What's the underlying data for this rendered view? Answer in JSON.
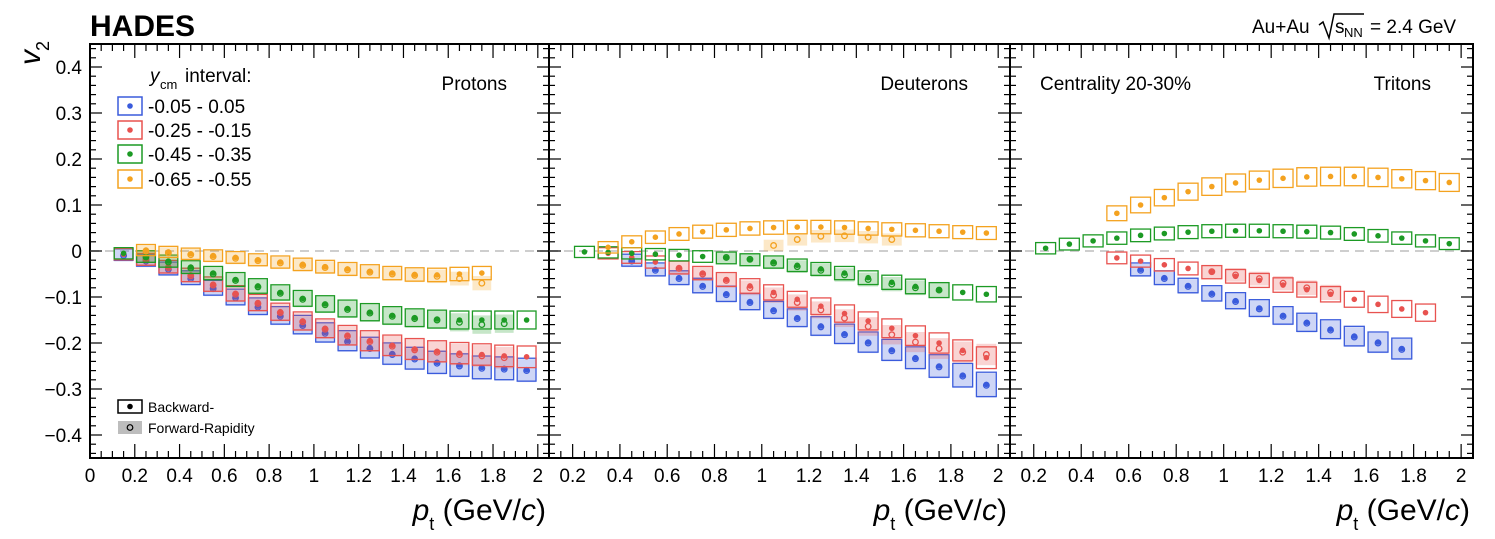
{
  "experiment": "HADES",
  "system": {
    "prefix": "Au+Au",
    "sqrt": "s",
    "sub": "NN",
    "suffix": "= 2.4 GeV"
  },
  "centrality": "Centrality 20-30%",
  "legend": {
    "title_y": "y",
    "title_sub": "cm",
    "title_rest": "interval:",
    "marker_backward": "Backward-",
    "marker_forward": "Forward-Rapidity"
  },
  "colors": {
    "c005": "#3a5bdc",
    "c025": "#e8524f",
    "c045": "#1c9a24",
    "c065": "#f4a21f",
    "dashed": "#bdbdbd"
  },
  "chart_data": [
    {
      "type": "scatter",
      "title": "Protons",
      "xlabel_main": "p",
      "xlabel_sub": "t",
      "xlabel_unit": "(GeV/c)",
      "ylabel_main": "v",
      "ylabel_sub": "2",
      "xlim": [
        0,
        2.05
      ],
      "ylim": [
        -0.45,
        0.45
      ],
      "x_ticks": [
        "0",
        "0.2",
        "0.4",
        "0.6",
        "0.8",
        "1",
        "1.2",
        "1.4",
        "1.6",
        "1.8",
        "2"
      ],
      "y_ticks": [
        "0.4",
        "0.3",
        "0.2",
        "0.1",
        "0",
        "-0.1",
        "-0.2",
        "-0.3",
        "-0.4"
      ],
      "series": [
        {
          "name": "-0.05 - 0.05",
          "color_key": "c005",
          "backward": {
            "x": [
              0.15,
              0.25,
              0.35,
              0.45,
              0.55,
              0.65,
              0.75,
              0.85,
              0.95,
              1.05,
              1.15,
              1.25,
              1.35,
              1.45,
              1.55,
              1.65,
              1.75,
              1.85,
              1.95
            ],
            "y": [
              -0.008,
              -0.02,
              -0.038,
              -0.058,
              -0.08,
              -0.1,
              -0.12,
              -0.14,
              -0.16,
              -0.177,
              -0.195,
              -0.21,
              -0.223,
              -0.233,
              -0.242,
              -0.248,
              -0.253,
              -0.255,
              -0.258
            ]
          },
          "forward": {
            "x": [
              0.15,
              0.25,
              0.35,
              0.45,
              0.55,
              0.65,
              0.75,
              0.85,
              0.95,
              1.05,
              1.15,
              1.25,
              1.35,
              1.45,
              1.55,
              1.65,
              1.75,
              1.85,
              1.95
            ],
            "y": [
              -0.01,
              -0.022,
              -0.04,
              -0.06,
              -0.082,
              -0.102,
              -0.122,
              -0.142,
              -0.162,
              -0.179,
              -0.197,
              -0.212,
              -0.225,
              -0.235,
              -0.244,
              -0.25,
              -0.255,
              -0.257,
              -0.26
            ]
          }
        },
        {
          "name": "-0.25 - -0.15",
          "color_key": "c025",
          "backward": {
            "x": [
              0.15,
              0.25,
              0.35,
              0.45,
              0.55,
              0.65,
              0.75,
              0.85,
              0.95,
              1.05,
              1.15,
              1.25,
              1.35,
              1.45,
              1.55,
              1.65,
              1.75,
              1.85,
              1.95
            ],
            "y": [
              -0.007,
              -0.018,
              -0.034,
              -0.052,
              -0.072,
              -0.092,
              -0.112,
              -0.132,
              -0.152,
              -0.168,
              -0.183,
              -0.195,
              -0.205,
              -0.213,
              -0.218,
              -0.222,
              -0.225,
              -0.228,
              -0.23
            ]
          },
          "forward": {
            "x": [
              0.25,
              0.35,
              0.45,
              0.55,
              0.65,
              0.75,
              0.85,
              0.95,
              1.05,
              1.15,
              1.25,
              1.35,
              1.45,
              1.55,
              1.65,
              1.75,
              1.85
            ],
            "y": [
              -0.019,
              -0.036,
              -0.054,
              -0.074,
              -0.094,
              -0.114,
              -0.134,
              -0.154,
              -0.17,
              -0.185,
              -0.197,
              -0.207,
              -0.215,
              -0.22,
              -0.225,
              -0.228,
              -0.232
            ]
          }
        },
        {
          "name": "-0.45 - -0.35",
          "color_key": "c045",
          "backward": {
            "x": [
              0.15,
              0.25,
              0.35,
              0.45,
              0.55,
              0.65,
              0.75,
              0.85,
              0.95,
              1.05,
              1.15,
              1.25,
              1.35,
              1.45,
              1.55,
              1.65,
              1.75,
              1.85,
              1.95
            ],
            "y": [
              -0.005,
              -0.012,
              -0.022,
              -0.035,
              -0.048,
              -0.062,
              -0.076,
              -0.09,
              -0.103,
              -0.115,
              -0.125,
              -0.133,
              -0.14,
              -0.145,
              -0.148,
              -0.15,
              -0.15,
              -0.15,
              -0.15
            ]
          },
          "forward": {
            "x": [
              0.25,
              0.35,
              0.45,
              0.55,
              0.65,
              0.75,
              0.85,
              0.95,
              1.05,
              1.15,
              1.25,
              1.35,
              1.45,
              1.55,
              1.65,
              1.75,
              1.85
            ],
            "y": [
              -0.013,
              -0.024,
              -0.037,
              -0.05,
              -0.064,
              -0.078,
              -0.092,
              -0.105,
              -0.117,
              -0.127,
              -0.135,
              -0.142,
              -0.147,
              -0.15,
              -0.155,
              -0.16,
              -0.158
            ]
          }
        },
        {
          "name": "-0.65 - -0.55",
          "color_key": "c065",
          "backward": {
            "x": [
              0.25,
              0.35,
              0.45,
              0.55,
              0.65,
              0.75,
              0.85,
              0.95,
              1.05,
              1.15,
              1.25,
              1.35,
              1.45,
              1.55,
              1.65,
              1.75
            ],
            "y": [
              0.002,
              -0.002,
              -0.006,
              -0.01,
              -0.014,
              -0.019,
              -0.024,
              -0.029,
              -0.034,
              -0.039,
              -0.044,
              -0.048,
              -0.051,
              -0.052,
              -0.05,
              -0.048
            ]
          },
          "forward": {
            "x": [
              0.25,
              0.35,
              0.45,
              0.55,
              0.65,
              0.75,
              0.85,
              0.95,
              1.05,
              1.15,
              1.25,
              1.35,
              1.45,
              1.55,
              1.65,
              1.75
            ],
            "y": [
              0.0,
              -0.004,
              -0.008,
              -0.012,
              -0.016,
              -0.021,
              -0.026,
              -0.031,
              -0.036,
              -0.041,
              -0.046,
              -0.05,
              -0.053,
              -0.055,
              -0.06,
              -0.07
            ]
          }
        }
      ]
    },
    {
      "type": "scatter",
      "title": "Deuterons",
      "xlabel_main": "p",
      "xlabel_sub": "t",
      "xlabel_unit": "(GeV/c)",
      "xlim": [
        0.1,
        2.05
      ],
      "ylim": [
        -0.45,
        0.45
      ],
      "x_ticks": [
        "0.2",
        "0.4",
        "0.6",
        "0.8",
        "1",
        "1.2",
        "1.4",
        "1.6",
        "1.8",
        "2"
      ],
      "series": [
        {
          "name": "-0.05 - 0.05",
          "color_key": "c005",
          "backward": {
            "x": [
              0.45,
              0.55,
              0.65,
              0.75,
              0.85,
              0.95,
              1.05,
              1.15,
              1.25,
              1.35,
              1.45,
              1.55,
              1.65,
              1.75,
              1.85,
              1.95
            ],
            "y": [
              -0.02,
              -0.04,
              -0.058,
              -0.075,
              -0.093,
              -0.11,
              -0.128,
              -0.145,
              -0.163,
              -0.18,
              -0.198,
              -0.215,
              -0.232,
              -0.25,
              -0.27,
              -0.29
            ]
          },
          "forward": {
            "x": [
              0.45,
              0.55,
              0.65,
              0.75,
              0.85,
              0.95,
              1.05,
              1.15,
              1.25,
              1.35,
              1.45,
              1.55,
              1.65,
              1.75,
              1.85,
              1.95
            ],
            "y": [
              -0.022,
              -0.042,
              -0.06,
              -0.077,
              -0.095,
              -0.112,
              -0.13,
              -0.147,
              -0.165,
              -0.182,
              -0.2,
              -0.217,
              -0.234,
              -0.252,
              -0.272,
              -0.292
            ]
          }
        },
        {
          "name": "-0.25 - -0.15",
          "color_key": "c025",
          "backward": {
            "x": [
              0.35,
              0.45,
              0.55,
              0.65,
              0.75,
              0.85,
              0.95,
              1.05,
              1.15,
              1.25,
              1.35,
              1.45,
              1.55,
              1.65,
              1.75,
              1.85,
              1.95
            ],
            "y": [
              -0.005,
              -0.014,
              -0.024,
              -0.036,
              -0.048,
              -0.062,
              -0.076,
              -0.09,
              -0.105,
              -0.12,
              -0.136,
              -0.152,
              -0.168,
              -0.184,
              -0.2,
              -0.216,
              -0.232
            ]
          },
          "forward": {
            "x": [
              0.65,
              0.75,
              0.85,
              0.95,
              1.05,
              1.15,
              1.25,
              1.35,
              1.45,
              1.55,
              1.65,
              1.75,
              1.85,
              1.95
            ],
            "y": [
              -0.038,
              -0.05,
              -0.064,
              -0.08,
              -0.096,
              -0.112,
              -0.128,
              -0.146,
              -0.164,
              -0.182,
              -0.198,
              -0.212,
              -0.22,
              -0.225
            ]
          }
        },
        {
          "name": "-0.45 - -0.35",
          "color_key": "c045",
          "backward": {
            "x": [
              0.25,
              0.35,
              0.45,
              0.55,
              0.65,
              0.75,
              0.85,
              0.95,
              1.05,
              1.15,
              1.25,
              1.35,
              1.45,
              1.55,
              1.65,
              1.75,
              1.85,
              1.95
            ],
            "y": [
              -0.002,
              -0.003,
              -0.005,
              -0.007,
              -0.009,
              -0.012,
              -0.015,
              -0.019,
              -0.024,
              -0.031,
              -0.039,
              -0.048,
              -0.058,
              -0.068,
              -0.077,
              -0.085,
              -0.09,
              -0.094
            ]
          },
          "forward": {
            "x": [
              0.85,
              0.95,
              1.05,
              1.15,
              1.25,
              1.35,
              1.45,
              1.55,
              1.65,
              1.75
            ],
            "y": [
              -0.014,
              -0.018,
              -0.026,
              -0.034,
              -0.042,
              -0.052,
              -0.062,
              -0.072,
              -0.08,
              -0.085
            ]
          }
        },
        {
          "name": "-0.65 - -0.55",
          "color_key": "c065",
          "backward": {
            "x": [
              0.35,
              0.45,
              0.55,
              0.65,
              0.75,
              0.85,
              0.95,
              1.05,
              1.15,
              1.25,
              1.35,
              1.45,
              1.55,
              1.65,
              1.75,
              1.85,
              1.95
            ],
            "y": [
              0.008,
              0.02,
              0.03,
              0.037,
              0.042,
              0.046,
              0.049,
              0.051,
              0.052,
              0.052,
              0.051,
              0.049,
              0.047,
              0.045,
              0.043,
              0.041,
              0.039
            ]
          },
          "forward": {
            "x": [
              1.05,
              1.15,
              1.25,
              1.35,
              1.45,
              1.55
            ],
            "y": [
              0.012,
              0.025,
              0.032,
              0.033,
              0.03,
              0.025
            ]
          }
        }
      ]
    },
    {
      "type": "scatter",
      "title": "Tritons",
      "xlabel_main": "p",
      "xlabel_sub": "t",
      "xlabel_unit": "(GeV/c)",
      "xlim": [
        0.1,
        2.05
      ],
      "ylim": [
        -0.45,
        0.45
      ],
      "x_ticks": [
        "0.2",
        "0.4",
        "0.6",
        "0.8",
        "1",
        "1.2",
        "1.4",
        "1.6",
        "1.8",
        "2"
      ],
      "series": [
        {
          "name": "-0.05 - 0.05",
          "color_key": "c005",
          "backward": {
            "x": [
              0.65,
              0.75,
              0.85,
              0.95,
              1.05,
              1.15,
              1.25,
              1.35,
              1.45,
              1.55,
              1.65,
              1.75
            ],
            "y": [
              -0.04,
              -0.058,
              -0.075,
              -0.092,
              -0.108,
              -0.124,
              -0.14,
              -0.155,
              -0.17,
              -0.185,
              -0.198,
              -0.212
            ]
          },
          "forward": {
            "x": [
              0.65,
              0.75,
              0.85,
              0.95,
              1.05,
              1.15,
              1.25,
              1.35,
              1.45,
              1.55,
              1.65,
              1.75
            ],
            "y": [
              -0.042,
              -0.06,
              -0.077,
              -0.094,
              -0.11,
              -0.126,
              -0.142,
              -0.157,
              -0.172,
              -0.187,
              -0.2,
              -0.214
            ]
          }
        },
        {
          "name": "-0.25 - -0.15",
          "color_key": "c025",
          "backward": {
            "x": [
              0.55,
              0.65,
              0.75,
              0.85,
              0.95,
              1.05,
              1.15,
              1.25,
              1.35,
              1.45,
              1.55,
              1.65,
              1.75,
              1.85
            ],
            "y": [
              -0.015,
              -0.022,
              -0.03,
              -0.038,
              -0.046,
              -0.055,
              -0.064,
              -0.074,
              -0.084,
              -0.094,
              -0.105,
              -0.116,
              -0.126,
              -0.134
            ]
          },
          "forward": {
            "x": [
              0.95,
              1.05,
              1.15,
              1.25,
              1.35,
              1.45
            ],
            "y": [
              -0.045,
              -0.052,
              -0.06,
              -0.07,
              -0.08,
              -0.09
            ]
          }
        },
        {
          "name": "-0.45 - -0.35",
          "color_key": "c045",
          "backward": {
            "x": [
              0.25,
              0.35,
              0.45,
              0.55,
              0.65,
              0.75,
              0.85,
              0.95,
              1.05,
              1.15,
              1.25,
              1.35,
              1.45,
              1.55,
              1.65,
              1.75,
              1.85,
              1.95
            ],
            "y": [
              0.006,
              0.015,
              0.022,
              0.028,
              0.034,
              0.038,
              0.041,
              0.043,
              0.044,
              0.044,
              0.043,
              0.042,
              0.04,
              0.037,
              0.033,
              0.028,
              0.022,
              0.016
            ]
          },
          "forward": {
            "x": [],
            "y": []
          }
        },
        {
          "name": "-0.65 - -0.55",
          "color_key": "c065",
          "backward": {
            "x": [
              0.55,
              0.65,
              0.75,
              0.85,
              0.95,
              1.05,
              1.15,
              1.25,
              1.35,
              1.45,
              1.55,
              1.65,
              1.75,
              1.85,
              1.95
            ],
            "y": [
              0.082,
              0.1,
              0.116,
              0.129,
              0.14,
              0.148,
              0.154,
              0.158,
              0.161,
              0.162,
              0.162,
              0.16,
              0.157,
              0.153,
              0.149
            ]
          },
          "forward": {
            "x": [],
            "y": []
          }
        }
      ]
    }
  ]
}
